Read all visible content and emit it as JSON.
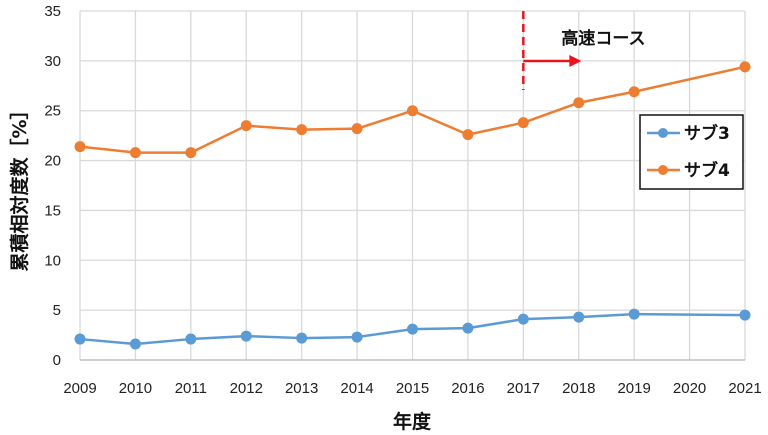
{
  "chart_data": {
    "type": "line",
    "title": "",
    "xlabel": "年度",
    "ylabel": "累積相対度数［%］",
    "x": [
      2009,
      2010,
      2011,
      2012,
      2013,
      2014,
      2015,
      2016,
      2017,
      2018,
      2019,
      2020,
      2021
    ],
    "x_tick_labels": [
      "2009",
      "2010",
      "2011",
      "2012",
      "2013",
      "2014",
      "2015",
      "2016",
      "2017",
      "2018",
      "2019",
      "2020",
      "2021"
    ],
    "y_tick_labels": [
      "0",
      "5",
      "10",
      "15",
      "20",
      "25",
      "30",
      "35"
    ],
    "ylim": [
      0,
      35
    ],
    "grid": true,
    "legend_position": "right-middle",
    "series": [
      {
        "name": "サブ3",
        "color": "#5b9bd5",
        "x": [
          2009,
          2010,
          2011,
          2012,
          2013,
          2014,
          2015,
          2016,
          2017,
          2018,
          2019,
          2021
        ],
        "values": [
          2.1,
          1.6,
          2.1,
          2.4,
          2.2,
          2.3,
          3.1,
          3.2,
          4.1,
          4.3,
          4.6,
          4.5
        ]
      },
      {
        "name": "サブ4",
        "color": "#ed7d31",
        "x": [
          2009,
          2010,
          2011,
          2012,
          2013,
          2014,
          2015,
          2016,
          2017,
          2018,
          2019,
          2021
        ],
        "values": [
          21.4,
          20.8,
          20.8,
          23.5,
          23.1,
          23.2,
          25.0,
          22.6,
          23.8,
          25.8,
          26.9,
          29.4
        ]
      }
    ],
    "annotations": [
      {
        "text": "高速コース",
        "type": "vertical-dashed-line-with-arrow",
        "x": 2017,
        "arrow_direction": "right",
        "color": "#e8141e"
      }
    ]
  }
}
